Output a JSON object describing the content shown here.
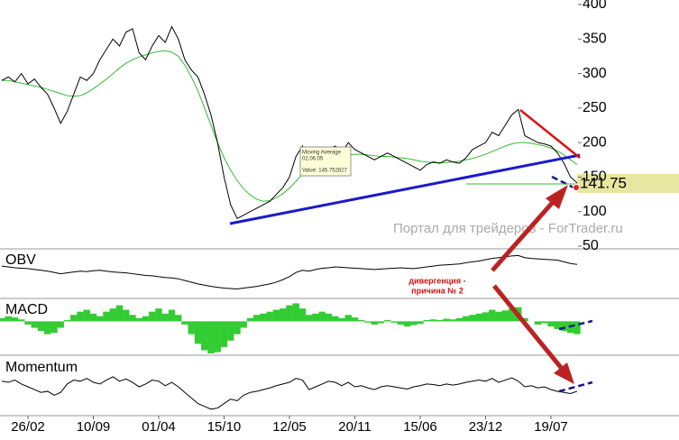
{
  "chart_data": [
    {
      "type": "line",
      "series": [
        {
          "color": "#000000",
          "values": [
            290,
            295,
            288,
            300,
            285,
            292,
            280,
            270,
            250,
            228,
            245,
            270,
            295,
            290,
            300,
            320,
            335,
            350,
            340,
            360,
            365,
            330,
            320,
            340,
            355,
            345,
            368,
            350,
            320,
            305,
            295,
            270,
            240,
            200,
            150,
            110,
            90,
            95,
            100,
            105,
            110,
            115,
            125,
            135,
            150,
            180,
            195,
            155,
            160,
            175,
            190,
            195,
            185,
            200,
            190,
            185,
            180,
            175,
            180,
            185,
            180,
            175,
            170,
            165,
            160,
            168,
            172,
            170,
            175,
            172,
            170,
            178,
            190,
            195,
            200,
            215,
            210,
            225,
            240,
            248,
            210,
            205,
            200,
            198,
            195,
            185,
            170,
            150,
            141.75
          ]
        },
        {
          "name": "Moving Average",
          "color": "#33bb33",
          "values": [
            290,
            290,
            288,
            286,
            284,
            282,
            280,
            277,
            274,
            271,
            268,
            267,
            268,
            272,
            278,
            285,
            292,
            300,
            308,
            315,
            320,
            324,
            327,
            330,
            332,
            333,
            331,
            325,
            312,
            295,
            275,
            250,
            225,
            200,
            178,
            160,
            145,
            133,
            124,
            118,
            115,
            116,
            120,
            126,
            134,
            144,
            154,
            160,
            166,
            171,
            175,
            178,
            180,
            182,
            183,
            183,
            182,
            181,
            180,
            180,
            179,
            178,
            177,
            175,
            173,
            172,
            171,
            171,
            171,
            172,
            173,
            175,
            177,
            180,
            183,
            187,
            191,
            195,
            198,
            200,
            200,
            199,
            197,
            195,
            192,
            188,
            182,
            175,
            168
          ]
        }
      ],
      "ylim": [
        50,
        400
      ],
      "yticks": [
        50,
        100,
        150,
        200,
        250,
        300,
        350,
        400
      ],
      "watermark": "Портал для трейдеров - ForTrader.ru",
      "tooltip": {
        "title": "Moving Average",
        "date": "02.06.05",
        "text": "Value: 145.752827"
      }
    },
    {
      "type": "line",
      "title": "OBV",
      "color": "#000000",
      "ylim": [
        0,
        100
      ],
      "values": [
        70,
        68,
        66,
        65,
        64,
        62,
        60,
        58,
        55,
        52,
        54,
        56,
        58,
        57,
        59,
        60,
        58,
        56,
        55,
        54,
        52,
        50,
        48,
        47,
        45,
        43,
        42,
        40,
        36,
        32,
        28,
        25,
        22,
        20,
        18,
        17,
        16,
        18,
        20,
        22,
        25,
        28,
        32,
        38,
        45,
        55,
        60,
        58,
        62,
        65,
        66,
        68,
        67,
        66,
        65,
        64,
        63,
        62,
        63,
        64,
        65,
        66,
        65,
        64,
        66,
        68,
        70,
        72,
        73,
        74,
        75,
        78,
        80,
        82,
        85,
        88,
        90,
        92,
        94,
        95,
        90,
        88,
        87,
        86,
        85,
        84,
        80,
        76,
        74
      ]
    },
    {
      "type": "bar",
      "title": "MACD",
      "color": "#33cc33",
      "ylim": [
        -50,
        30
      ],
      "values": [
        5,
        8,
        6,
        3,
        -5,
        -10,
        -15,
        -20,
        -18,
        -10,
        2,
        10,
        15,
        18,
        12,
        8,
        15,
        20,
        25,
        18,
        10,
        5,
        8,
        15,
        20,
        12,
        18,
        10,
        -5,
        -20,
        -35,
        -45,
        -50,
        -48,
        -40,
        -30,
        -20,
        -10,
        5,
        10,
        12,
        15,
        18,
        20,
        25,
        28,
        20,
        10,
        12,
        15,
        12,
        8,
        5,
        10,
        6,
        2,
        -2,
        -5,
        -3,
        2,
        -2,
        -5,
        -8,
        -6,
        -4,
        2,
        3,
        2,
        4,
        3,
        5,
        8,
        10,
        12,
        14,
        18,
        15,
        17,
        20,
        22,
        5,
        0,
        -5,
        -3,
        -8,
        -12,
        -15,
        -18,
        -20
      ]
    },
    {
      "type": "line",
      "title": "Momentum",
      "color": "#000000",
      "ylim": [
        0,
        100
      ],
      "values": [
        60,
        58,
        62,
        55,
        50,
        45,
        40,
        42,
        35,
        40,
        55,
        62,
        60,
        65,
        58,
        55,
        62,
        68,
        60,
        64,
        58,
        50,
        55,
        62,
        60,
        52,
        58,
        50,
        40,
        30,
        20,
        15,
        10,
        12,
        20,
        28,
        25,
        35,
        40,
        42,
        45,
        48,
        52,
        55,
        58,
        65,
        62,
        45,
        50,
        55,
        60,
        58,
        52,
        58,
        50,
        52,
        48,
        45,
        50,
        52,
        50,
        48,
        46,
        50,
        52,
        55,
        54,
        52,
        55,
        53,
        55,
        58,
        60,
        62,
        60,
        65,
        58,
        62,
        66,
        60,
        50,
        52,
        48,
        50,
        45,
        42,
        40,
        38,
        42
      ],
      "categories": [
        null,
        null,
        null,
        null,
        "26/02",
        null,
        null,
        null,
        null,
        null,
        null,
        null,
        null,
        null,
        "10/09",
        null,
        null,
        null,
        null,
        null,
        null,
        null,
        null,
        null,
        "01/04",
        null,
        null,
        null,
        null,
        null,
        null,
        null,
        null,
        null,
        "15/10",
        null,
        null,
        null,
        null,
        null,
        null,
        null,
        null,
        null,
        "12/05",
        null,
        null,
        null,
        null,
        null,
        null,
        null,
        null,
        null,
        "20/11",
        null,
        null,
        null,
        null,
        null,
        null,
        null,
        null,
        null,
        "15/06",
        null,
        null,
        null,
        null,
        null,
        null,
        null,
        null,
        null,
        "23/12",
        null,
        null,
        null,
        null,
        null,
        null,
        null,
        null,
        null,
        "19/07",
        null,
        null,
        null,
        null
      ]
    }
  ],
  "annotations": [
    "дивергенция -",
    "причина № 2"
  ]
}
